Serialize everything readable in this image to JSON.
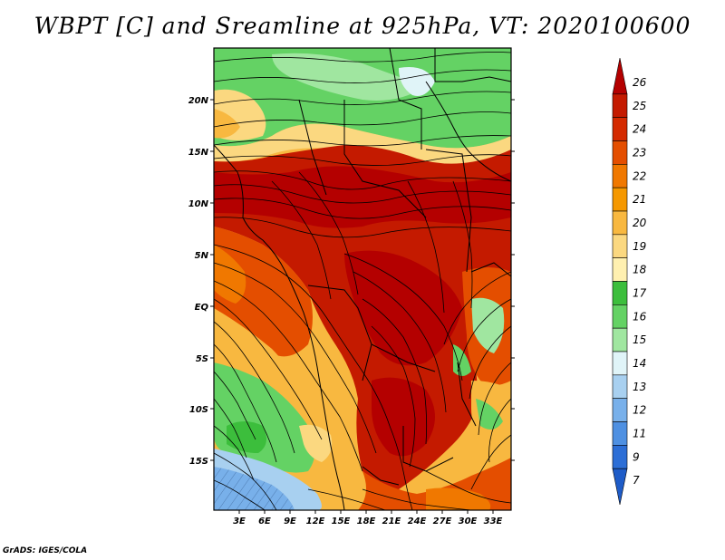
{
  "title": "WBPT [C] and Sreamline at 925hPa, VT: 2020100600",
  "footer": "GrADS: IGES/COLA",
  "map": {
    "lat_labels": [
      "20N",
      "15N",
      "10N",
      "5N",
      "EQ",
      "5S",
      "10S",
      "15S"
    ],
    "lon_labels": [
      "3E",
      "6E",
      "9E",
      "12E",
      "15E",
      "18E",
      "21E",
      "24E",
      "27E",
      "30E",
      "33E"
    ]
  },
  "colorbar": {
    "levels": [
      "26",
      "25",
      "24",
      "23",
      "22",
      "21",
      "20",
      "19",
      "18",
      "17",
      "16",
      "15",
      "14",
      "13",
      "12",
      "11",
      "9",
      "7"
    ],
    "colors": [
      "#b40000",
      "#c41a00",
      "#d42a00",
      "#e44e00",
      "#f07800",
      "#f59800",
      "#f8b840",
      "#fbd880",
      "#fff0b0",
      "#3cbe3c",
      "#64d264",
      "#a0e6a0",
      "#e0f4f8",
      "#a8d0f0",
      "#78b0ea",
      "#4e90e2",
      "#2c6ed6",
      "#1e5cc8"
    ]
  }
}
